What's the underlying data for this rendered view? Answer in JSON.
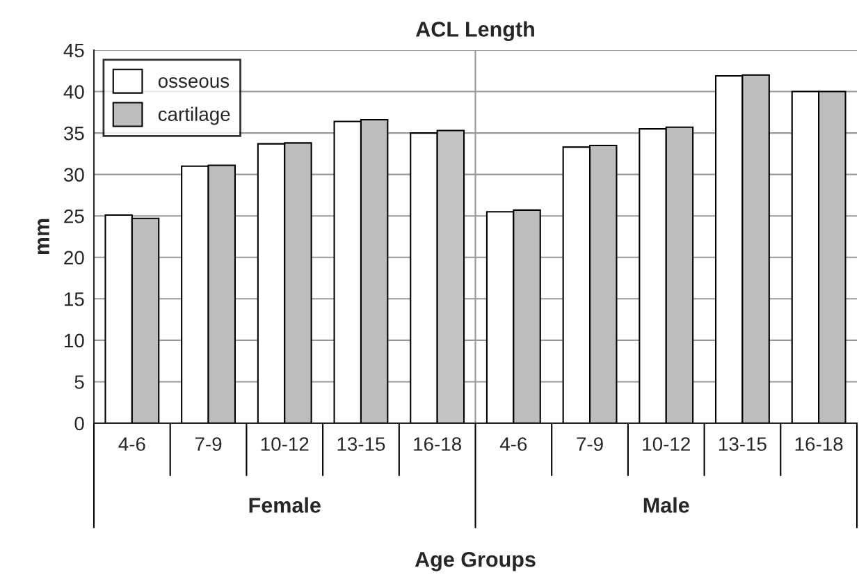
{
  "chart_data": {
    "type": "bar",
    "title": "ACL Length",
    "xlabel": "Age Groups",
    "ylabel": "mm",
    "categories": [
      "4-6",
      "7-9",
      "10-12",
      "13-15",
      "16-18",
      "4-6",
      "7-9",
      "10-12",
      "13-15",
      "16-18"
    ],
    "series": [
      {
        "name": "osseous",
        "color": "#ffffff",
        "values": [
          25.1,
          31.0,
          33.7,
          36.4,
          35.0,
          25.5,
          33.3,
          35.5,
          41.9,
          40.0
        ]
      },
      {
        "name": "cartilage",
        "color": "#bdbdbd",
        "colors": [
          "#bdbdbd",
          "#bdbdbd",
          "#bdbdbd",
          "#bdbdbd",
          "#c4c4c4",
          "#bdbdbd",
          "#bdbdbd",
          "#bdbdbd",
          "#bdbdbd",
          "#bdbdbd"
        ],
        "values": [
          24.7,
          31.1,
          33.8,
          36.6,
          35.3,
          25.7,
          33.5,
          35.7,
          42.0,
          40.0
        ]
      }
    ],
    "annotations": [
      "Female",
      "Male"
    ],
    "ylim": [
      0,
      45
    ],
    "yticks": [
      0,
      5,
      10,
      15,
      20,
      25,
      30,
      35,
      40,
      45
    ],
    "grid": "y",
    "legend": "top left"
  }
}
